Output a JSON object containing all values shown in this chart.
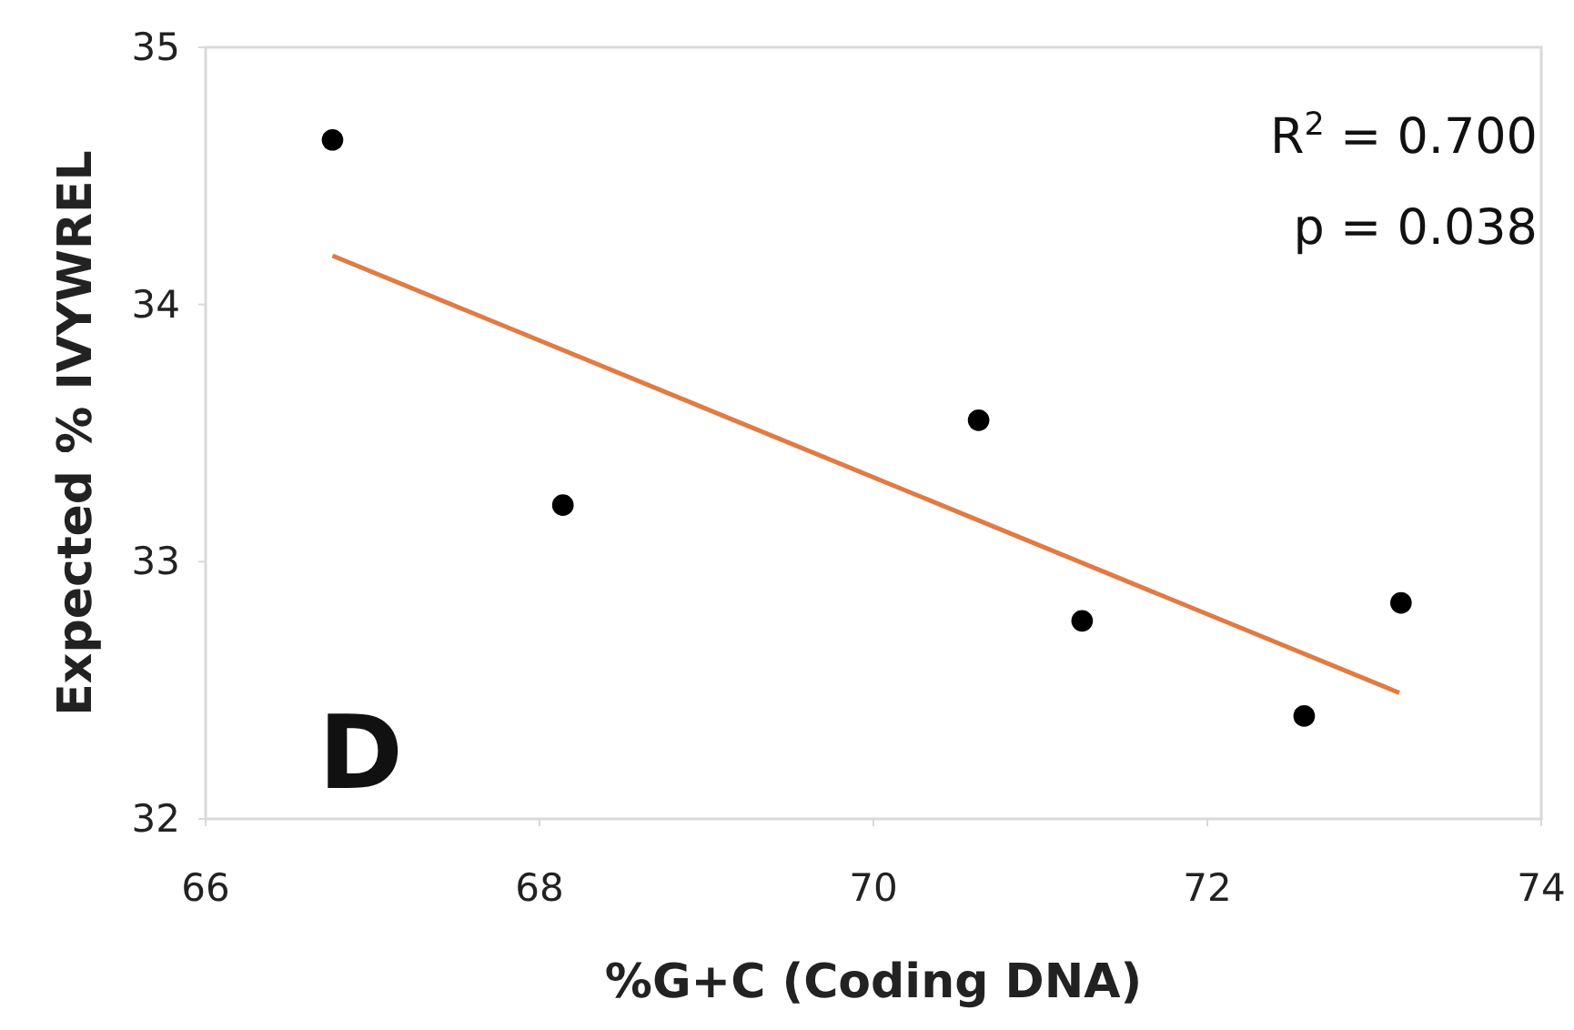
{
  "chart_data": {
    "type": "scatter",
    "xlabel": "%G+C (Coding DNA)",
    "ylabel": "Expected % IVYWREL",
    "xlim": [
      66,
      74
    ],
    "xticks": [
      66,
      68,
      70,
      72,
      74
    ],
    "ylim": [
      32,
      35
    ],
    "yticks": [
      32,
      33,
      34,
      35
    ],
    "grid": false,
    "series": [
      {
        "color": "#000000",
        "marker": "circle",
        "x": [
          66.76,
          68.14,
          70.63,
          71.25,
          72.58,
          73.16
        ],
        "values": [
          34.64,
          33.22,
          33.55,
          32.77,
          32.4,
          32.84
        ]
      },
      {
        "type": "line",
        "color": "#e07b45",
        "x": [
          66.76,
          73.15
        ],
        "values": [
          34.19,
          32.49
        ]
      }
    ],
    "annotations": [
      "R$^{2}$ = 0.700",
      "p = 0.038",
      "D"
    ]
  }
}
